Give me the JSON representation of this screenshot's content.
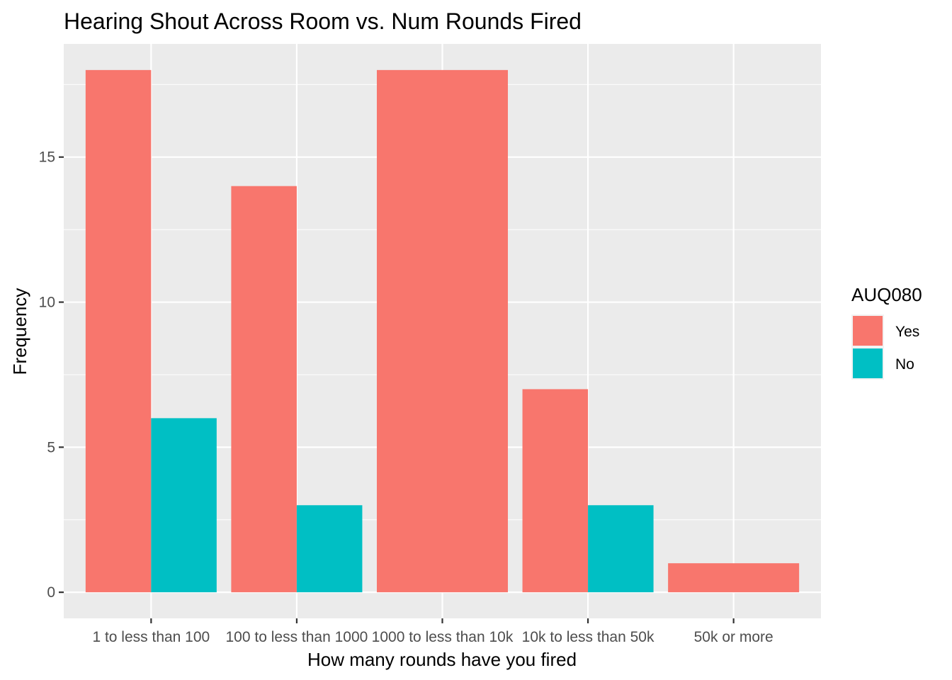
{
  "chart_data": {
    "type": "bar",
    "layout": "dodge",
    "title": "Hearing Shout Across Room vs. Num Rounds Fired",
    "xlabel": "How many rounds have you fired",
    "ylabel": "Frequency",
    "categories": [
      "1 to less than 100",
      "100 to less than 1000",
      "1000 to less than 10k",
      "10k to less than 50k",
      "50k or more"
    ],
    "series": [
      {
        "name": "Yes",
        "color": "#F8766D",
        "values": [
          18,
          14,
          18,
          7,
          1
        ]
      },
      {
        "name": "No",
        "color": "#00BFC4",
        "values": [
          6,
          3,
          0,
          3,
          0
        ]
      }
    ],
    "yticks": [
      0,
      5,
      10,
      15
    ],
    "ylim": [
      -0.9,
      18.9
    ],
    "grid": true,
    "legend": {
      "title": "AUQ080",
      "placement": "right"
    },
    "panel_background": "#EBEBEB",
    "gridline_color": "#FFFFFF"
  }
}
